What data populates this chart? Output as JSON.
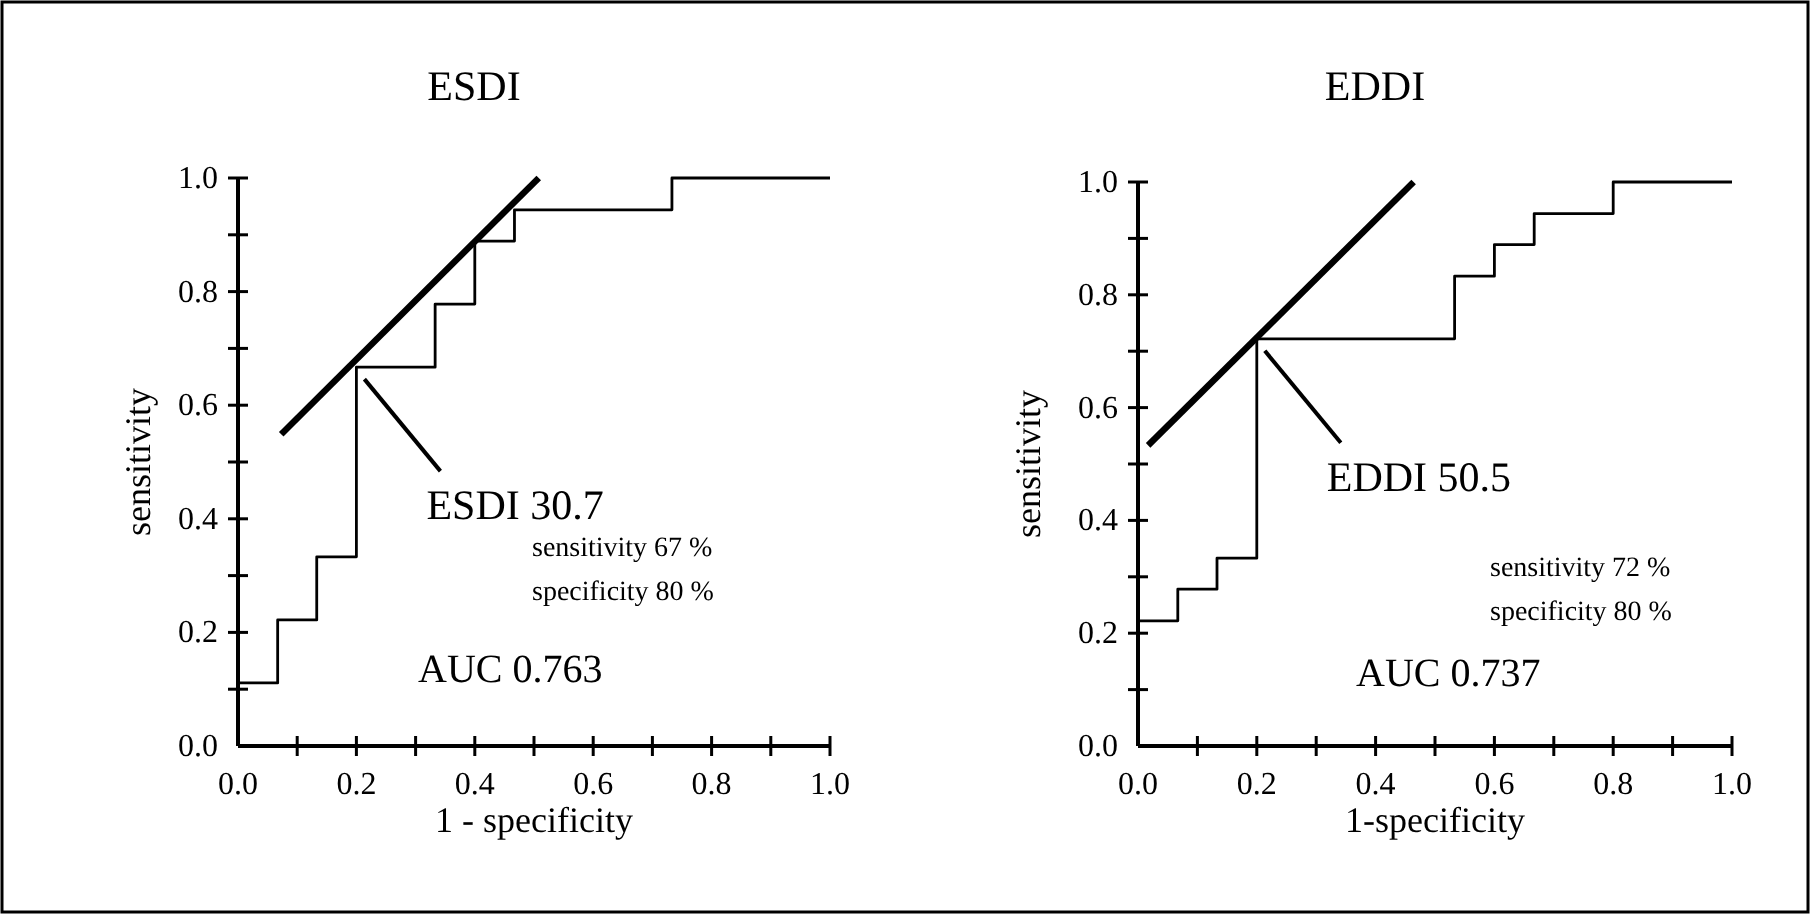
{
  "chart_data": [
    {
      "type": "step",
      "title": "ESDI",
      "xlabel": "1 - specificity",
      "ylabel": "sensitivity",
      "xlim": [
        0,
        1
      ],
      "ylim": [
        0,
        1
      ],
      "xticks": [
        {
          "value": 0,
          "label": "0.0"
        },
        {
          "value": 0.1,
          "label": null
        },
        {
          "value": 0.2,
          "label": "0.2"
        },
        {
          "value": 0.3,
          "label": null
        },
        {
          "value": 0.4,
          "label": "0.4"
        },
        {
          "value": 0.5,
          "label": null
        },
        {
          "value": 0.6,
          "label": "0.6"
        },
        {
          "value": 0.7,
          "label": null
        },
        {
          "value": 0.8,
          "label": "0.8"
        },
        {
          "value": 0.9,
          "label": null
        },
        {
          "value": 1,
          "label": "1.0"
        }
      ],
      "yticks": [
        {
          "value": 0,
          "label": "0.0"
        },
        {
          "value": 0.1,
          "label": null
        },
        {
          "value": 0.2,
          "label": "0.2"
        },
        {
          "value": 0.3,
          "label": null
        },
        {
          "value": 0.4,
          "label": "0.4"
        },
        {
          "value": 0.5,
          "label": null
        },
        {
          "value": 0.6,
          "label": "0.6"
        },
        {
          "value": 0.7,
          "label": null
        },
        {
          "value": 0.8,
          "label": "0.8"
        },
        {
          "value": 0.9,
          "label": null
        },
        {
          "value": 1,
          "label": "1.0"
        }
      ],
      "series": [
        {
          "color": "#000000",
          "x": [
            0,
            0.067,
            0.133,
            0.2,
            0.333,
            0.4,
            0.467,
            0.733,
            1.0
          ],
          "values": [
            0.111,
            0.222,
            0.333,
            0.667,
            0.778,
            0.889,
            0.944,
            1.0,
            1.0
          ]
        },
        {
          "type": "line",
          "color": "#000000",
          "x": [
            0.073,
            0.508
          ],
          "values": [
            0.549,
            1.0
          ]
        }
      ],
      "annotations": [
        {
          "text": "ESDI 30.7",
          "x": 0.2,
          "y": 0.667
        },
        "sensitivity 67 %",
        "specificity 80 %",
        "AUC 0.763"
      ]
    },
    {
      "type": "step",
      "title": "EDDI",
      "xlabel": "1-specificity",
      "ylabel": "sensitivity",
      "xlim": [
        0,
        1
      ],
      "ylim": [
        0,
        1
      ],
      "xticks": [
        {
          "value": 0,
          "label": "0.0"
        },
        {
          "value": 0.1,
          "label": null
        },
        {
          "value": 0.2,
          "label": "0.2"
        },
        {
          "value": 0.3,
          "label": null
        },
        {
          "value": 0.4,
          "label": "0.4"
        },
        {
          "value": 0.5,
          "label": null
        },
        {
          "value": 0.6,
          "label": "0.6"
        },
        {
          "value": 0.7,
          "label": null
        },
        {
          "value": 0.8,
          "label": "0.8"
        },
        {
          "value": 0.9,
          "label": null
        },
        {
          "value": 1,
          "label": "1.0"
        }
      ],
      "yticks": [
        {
          "value": 0,
          "label": "0.0"
        },
        {
          "value": 0.1,
          "label": null
        },
        {
          "value": 0.2,
          "label": "0.2"
        },
        {
          "value": 0.3,
          "label": null
        },
        {
          "value": 0.4,
          "label": "0.4"
        },
        {
          "value": 0.5,
          "label": null
        },
        {
          "value": 0.6,
          "label": "0.6"
        },
        {
          "value": 0.7,
          "label": null
        },
        {
          "value": 0.8,
          "label": "0.8"
        },
        {
          "value": 0.9,
          "label": null
        },
        {
          "value": 1,
          "label": "1.0"
        }
      ],
      "series": [
        {
          "color": "#000000",
          "x": [
            0,
            0.067,
            0.133,
            0.2,
            0.533,
            0.6,
            0.667,
            0.8,
            1.0
          ],
          "values": [
            0.222,
            0.278,
            0.333,
            0.722,
            0.833,
            0.889,
            0.944,
            1.0,
            1.0
          ]
        },
        {
          "type": "line",
          "color": "#000000",
          "x": [
            0.017,
            0.464
          ],
          "values": [
            0.533,
            1.0
          ]
        }
      ],
      "annotations": [
        {
          "text": "EDDI 50.5",
          "x": 0.2,
          "y": 0.722
        },
        "sensitivity 72 %",
        "specificity 80 %",
        "AUC 0.737"
      ]
    }
  ]
}
